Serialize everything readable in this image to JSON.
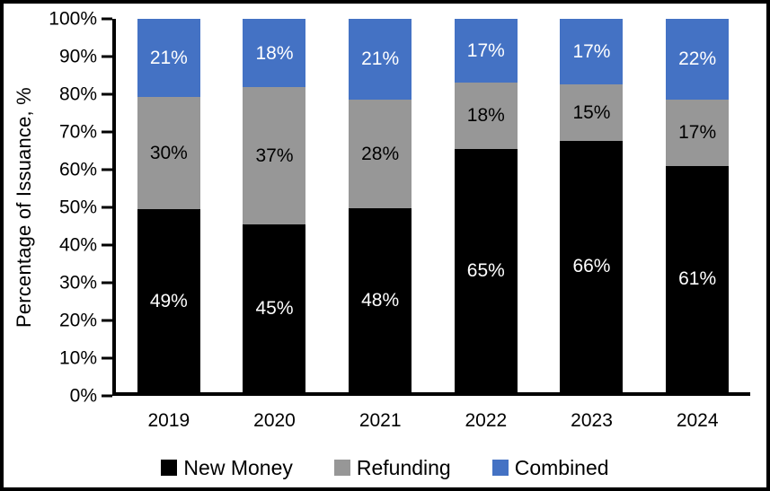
{
  "chart_data": {
    "type": "bar",
    "stacked": true,
    "percent_stacked": true,
    "title": "",
    "xlabel": "",
    "ylabel": "Percentage of Issuance, %",
    "ylim": [
      0,
      100
    ],
    "grid": false,
    "legend_position": "bottom",
    "categories": [
      "2019",
      "2020",
      "2021",
      "2022",
      "2023",
      "2024"
    ],
    "y_ticks": [
      "100%",
      "90%",
      "80%",
      "70%",
      "60%",
      "50%",
      "40%",
      "30%",
      "20%",
      "10%",
      "0%"
    ],
    "series": [
      {
        "name": "New Money",
        "color": "#000000",
        "label_color": "#ffffff",
        "values": [
          49,
          45,
          48,
          65,
          66,
          61
        ],
        "labels": [
          "49%",
          "45%",
          "48%",
          "65%",
          "66%",
          "61%"
        ],
        "heights_pct": [
          49.0,
          44.9,
          49.4,
          65.2,
          67.4,
          60.7
        ]
      },
      {
        "name": "Refunding",
        "color": "#979797",
        "label_color": "#000000",
        "values": [
          30,
          37,
          28,
          18,
          15,
          17
        ],
        "labels": [
          "30%",
          "37%",
          "28%",
          "18%",
          "15%",
          "17%"
        ],
        "heights_pct": [
          30.1,
          36.8,
          29.0,
          17.7,
          15.0,
          17.7
        ]
      },
      {
        "name": "Combined",
        "color": "#4472C4",
        "label_color": "#ffffff",
        "values": [
          21,
          18,
          21,
          17,
          17,
          22
        ],
        "labels": [
          "21%",
          "18%",
          "21%",
          "17%",
          "17%",
          "22%"
        ],
        "heights_pct": [
          20.9,
          18.3,
          21.6,
          17.1,
          17.6,
          21.6
        ]
      }
    ]
  }
}
